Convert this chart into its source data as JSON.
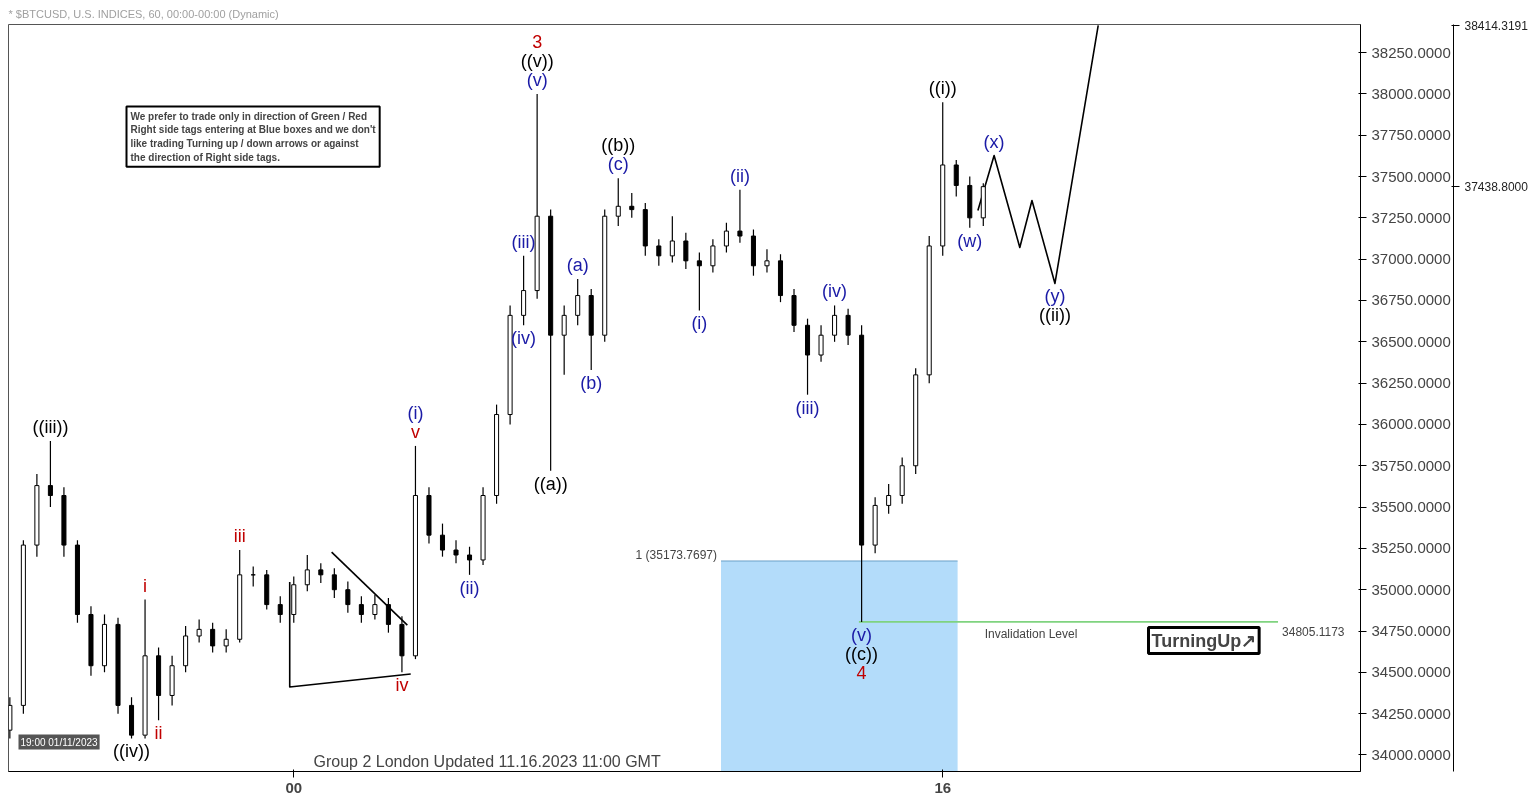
{
  "chart_data": {
    "type": "candlestick",
    "title": "* $BTCUSD, U.S. INDICES, 60, 00:00-00:00 (Dynamic)",
    "x": [
      "2023-11-13T03:00",
      "2023-11-13T04:00",
      "2023-11-13T05:00",
      "2023-11-13T06:00",
      "2023-11-13T07:00",
      "2023-11-13T08:00",
      "2023-11-13T09:00",
      "2023-11-13T10:00",
      "2023-11-13T11:00",
      "2023-11-13T12:00",
      "2023-11-13T13:00",
      "2023-11-13T14:00",
      "2023-11-13T15:00",
      "2023-11-13T16:00",
      "2023-11-13T17:00",
      "2023-11-13T18:00",
      "2023-11-13T19:00",
      "2023-11-13T20:00",
      "2023-11-13T21:00",
      "2023-11-13T22:00",
      "2023-11-13T23:00",
      "2023-11-14T00:00",
      "2023-11-14T01:00",
      "2023-11-14T02:00",
      "2023-11-14T03:00",
      "2023-11-14T04:00",
      "2023-11-14T05:00",
      "2023-11-14T06:00",
      "2023-11-14T07:00",
      "2023-11-14T08:00",
      "2023-11-14T09:00",
      "2023-11-14T10:00",
      "2023-11-14T11:00",
      "2023-11-14T12:00",
      "2023-11-14T13:00",
      "2023-11-14T14:00",
      "2023-11-14T15:00",
      "2023-11-14T16:00",
      "2023-11-14T17:00",
      "2023-11-14T18:00",
      "2023-11-14T19:00",
      "2023-11-14T20:00",
      "2023-11-14T21:00",
      "2023-11-14T22:00",
      "2023-11-14T23:00",
      "2023-11-15T00:00",
      "2023-11-15T01:00",
      "2023-11-15T02:00",
      "2023-11-15T03:00",
      "2023-11-15T04:00",
      "2023-11-15T05:00",
      "2023-11-15T06:00",
      "2023-11-15T07:00",
      "2023-11-15T08:00",
      "2023-11-15T09:00",
      "2023-11-15T10:00",
      "2023-11-15T11:00",
      "2023-11-15T12:00",
      "2023-11-15T13:00",
      "2023-11-15T14:00",
      "2023-11-15T15:00",
      "2023-11-15T16:00",
      "2023-11-15T17:00",
      "2023-11-15T18:00",
      "2023-11-15T19:00",
      "2023-11-15T20:00",
      "2023-11-15T21:00",
      "2023-11-15T22:00",
      "2023-11-15T23:00",
      "2023-11-16T00:00",
      "2023-11-16T01:00",
      "2023-11-16T02:00",
      "2023-11-16T03:00"
    ],
    "ohlc": [
      [
        34150,
        34350,
        34100,
        34300
      ],
      [
        34300,
        35300,
        34250,
        35270
      ],
      [
        35270,
        35700,
        35200,
        35630
      ],
      [
        35630,
        35900,
        35500,
        35570
      ],
      [
        35570,
        35620,
        35200,
        35270
      ],
      [
        35270,
        35300,
        34800,
        34850
      ],
      [
        34850,
        34900,
        34480,
        34540
      ],
      [
        34540,
        34850,
        34500,
        34790
      ],
      [
        34790,
        34830,
        34250,
        34300
      ],
      [
        34300,
        34350,
        34100,
        34120
      ],
      [
        34120,
        34940,
        34100,
        34600
      ],
      [
        34600,
        34650,
        34210,
        34360
      ],
      [
        34360,
        34600,
        34300,
        34540
      ],
      [
        34540,
        34780,
        34500,
        34720
      ],
      [
        34720,
        34820,
        34680,
        34760
      ],
      [
        34760,
        34800,
        34620,
        34660
      ],
      [
        34660,
        34760,
        34620,
        34700
      ],
      [
        34700,
        35240,
        34680,
        35090
      ],
      [
        35090,
        35140,
        35020,
        35090
      ],
      [
        35090,
        35120,
        34880,
        34910
      ],
      [
        34910,
        34960,
        34800,
        34850
      ],
      [
        34850,
        35080,
        34800,
        35030
      ],
      [
        35030,
        35210,
        34990,
        35120
      ],
      [
        35120,
        35160,
        35040,
        35090
      ],
      [
        35090,
        35130,
        34950,
        35000
      ],
      [
        35000,
        35050,
        34860,
        34910
      ],
      [
        34910,
        34960,
        34800,
        34850
      ],
      [
        34850,
        34970,
        34820,
        34910
      ],
      [
        34910,
        34950,
        34740,
        34790
      ],
      [
        34790,
        34840,
        34500,
        34600
      ],
      [
        34600,
        35870,
        34580,
        35570
      ],
      [
        35570,
        35620,
        35280,
        35330
      ],
      [
        35330,
        35400,
        35200,
        35240
      ],
      [
        35240,
        35300,
        35160,
        35210
      ],
      [
        35210,
        35260,
        35090,
        35180
      ],
      [
        35180,
        35620,
        35150,
        35570
      ],
      [
        35570,
        36120,
        35520,
        36060
      ],
      [
        36060,
        36720,
        36000,
        36660
      ],
      [
        36660,
        37020,
        36600,
        36810
      ],
      [
        36810,
        38000,
        36760,
        37260
      ],
      [
        37260,
        37300,
        35720,
        36540
      ],
      [
        36540,
        36720,
        36300,
        36660
      ],
      [
        36660,
        36880,
        36600,
        36780
      ],
      [
        36780,
        36820,
        36330,
        36540
      ],
      [
        36540,
        37300,
        36500,
        37260
      ],
      [
        37260,
        37490,
        37200,
        37320
      ],
      [
        37320,
        37400,
        37250,
        37300
      ],
      [
        37300,
        37340,
        37020,
        37080
      ],
      [
        37080,
        37120,
        36960,
        37020
      ],
      [
        37020,
        37260,
        36980,
        37110
      ],
      [
        37110,
        37160,
        36940,
        36990
      ],
      [
        36990,
        37040,
        36690,
        36960
      ],
      [
        36960,
        37120,
        36920,
        37080
      ],
      [
        37080,
        37220,
        37040,
        37170
      ],
      [
        37170,
        37420,
        37100,
        37140
      ],
      [
        37140,
        37180,
        36900,
        36960
      ],
      [
        36960,
        37060,
        36920,
        36990
      ],
      [
        36990,
        37030,
        36740,
        36780
      ],
      [
        36780,
        36820,
        36560,
        36600
      ],
      [
        36600,
        36640,
        36180,
        36420
      ],
      [
        36420,
        36600,
        36380,
        36540
      ],
      [
        36540,
        36720,
        36500,
        36660
      ],
      [
        36660,
        36700,
        36480,
        36540
      ],
      [
        36540,
        36600,
        34805.1173,
        35270
      ],
      [
        35270,
        35560,
        35220,
        35510
      ],
      [
        35510,
        35640,
        35460,
        35570
      ],
      [
        35570,
        35800,
        35520,
        35750
      ],
      [
        35750,
        36340,
        35700,
        36300
      ],
      [
        36300,
        37140,
        36250,
        37080
      ],
      [
        37080,
        37950,
        37020,
        37570
      ],
      [
        37570,
        37600,
        37380,
        37446
      ],
      [
        37446,
        37500,
        37190,
        37250
      ],
      [
        37250,
        37460,
        37200,
        37438.8
      ]
    ],
    "color": "#000000",
    "series": [
      {
        "type": "area",
        "x": [
          "2023-11-15T07:36",
          "2023-11-16T01:06"
        ],
        "values": [
          35173.7697,
          35173.7697
        ],
        "color": "#b3dcfa"
      },
      {
        "type": "line",
        "x": [
          "2023-11-15T17:48",
          "2023-11-17T00:48"
        ],
        "values": [
          34805.1173,
          34805.1173
        ],
        "color": "#7fd37f"
      },
      {
        "type": "line",
        "x": [
          "2023-11-13T23:42",
          "2023-11-13T23:42",
          "2023-11-14T08:39"
        ],
        "values": [
          35046,
          34411,
          34490
        ],
        "color": "#000000"
      },
      {
        "type": "line",
        "x": [
          "2023-11-14T02:48",
          "2023-11-14T08:24"
        ],
        "values": [
          35227,
          34786
        ],
        "color": "#000000"
      },
      {
        "type": "line",
        "x": [
          "2023-11-16T02:36",
          "2023-11-16T03:48",
          "2023-11-16T05:42",
          "2023-11-16T06:36",
          "2023-11-16T08:18",
          "2023-11-16T11:30"
        ],
        "values": [
          37295,
          37627,
          37071,
          37355,
          36853,
          38414
        ],
        "color": "#000000"
      }
    ],
    "xlim": [
      "2023-11-13T02:54",
      "2023-11-17T06:54"
    ],
    "ylim": [
      33900,
      38420
    ],
    "xticks": [
      {
        "value": "2023-11-14T00:00",
        "label": "00"
      },
      {
        "value": "2023-11-16T00:00",
        "label": "16"
      }
    ],
    "yticks": [
      {
        "value": 34000,
        "label": "34000.0000"
      },
      {
        "value": 34250,
        "label": "34250.0000"
      },
      {
        "value": 34500,
        "label": "34500.0000"
      },
      {
        "value": 34750,
        "label": "34750.0000"
      },
      {
        "value": 35000,
        "label": "35000.0000"
      },
      {
        "value": 35250,
        "label": "35250.0000"
      },
      {
        "value": 35500,
        "label": "35500.0000"
      },
      {
        "value": 35750,
        "label": "35750.0000"
      },
      {
        "value": 36000,
        "label": "36000.0000"
      },
      {
        "value": 36250,
        "label": "36250.0000"
      },
      {
        "value": 36500,
        "label": "36500.0000"
      },
      {
        "value": 36750,
        "label": "36750.0000"
      },
      {
        "value": 37000,
        "label": "37000.0000"
      },
      {
        "value": 37250,
        "label": "37250.0000"
      },
      {
        "value": 37500,
        "label": "37500.0000"
      },
      {
        "value": 37750,
        "label": "37750.0000"
      },
      {
        "value": 38000,
        "label": "38000.0000"
      },
      {
        "value": 38250,
        "label": "38250.0000"
      }
    ],
    "y2lim": [
      33900,
      38420
    ],
    "y2ticks": [
      {
        "value": 37438.8,
        "label": "37438.8000"
      },
      {
        "value": 38414.3191,
        "label": "38414.3191"
      }
    ],
    "grid": false,
    "annotations": [
      "We prefer to trade only in direction of Green / Red\nRight side tags entering at Blue boxes and we don't\nlike trading Turning up / down arrows or against\nthe direction of Right side tags.",
      "Group 2 London Updated 11.16.2023 11:00 GMT",
      "19:00 01/11/2023",
      "TurningUp↗",
      "Invalidation Level",
      {
        "text": "1 (35173.7697)",
        "x": "2023-11-15T07:36",
        "y": 35173.7697
      },
      {
        "text": "34805.1173",
        "x": "2023-11-17T00:48",
        "y": 34805.1173
      },
      {
        "text": "((iii))",
        "x": "2023-11-13T06:00",
        "y": 35900
      },
      {
        "text": "((iv))",
        "x": "2023-11-13T12:00",
        "y": 34100
      },
      {
        "text": "i",
        "x": "2023-11-13T13:00",
        "y": 34940
      },
      {
        "text": "ii",
        "x": "2023-11-13T14:00",
        "y": 34210
      },
      {
        "text": "iii",
        "x": "2023-11-13T20:00",
        "y": 35240
      },
      {
        "text": "iv",
        "x": "2023-11-14T08:00",
        "y": 34500
      },
      {
        "text": "v",
        "x": "2023-11-14T09:00",
        "y": 35870
      },
      {
        "text": "(i)",
        "x": "2023-11-14T09:00",
        "y": 35870
      },
      {
        "text": "(ii)",
        "x": "2023-11-14T13:00",
        "y": 35090
      },
      {
        "text": "(iii)",
        "x": "2023-11-14T17:00",
        "y": 37020
      },
      {
        "text": "(iv)",
        "x": "2023-11-14T17:00",
        "y": 36600
      },
      {
        "text": "(v)",
        "x": "2023-11-14T18:00",
        "y": 38000
      },
      {
        "text": "((v))",
        "x": "2023-11-14T18:00",
        "y": 38000
      },
      {
        "text": "3",
        "x": "2023-11-14T18:00",
        "y": 38000
      },
      {
        "text": "((a))",
        "x": "2023-11-14T19:00",
        "y": 35720
      },
      {
        "text": "(a)",
        "x": "2023-11-14T21:00",
        "y": 36880
      },
      {
        "text": "(b)",
        "x": "2023-11-14T22:00",
        "y": 36330
      },
      {
        "text": "(c)",
        "x": "2023-11-15T00:00",
        "y": 37490
      },
      {
        "text": "((b))",
        "x": "2023-11-15T00:00",
        "y": 37490
      },
      {
        "text": "(i)",
        "x": "2023-11-15T06:00",
        "y": 36690
      },
      {
        "text": "(ii)",
        "x": "2023-11-15T09:00",
        "y": 37420
      },
      {
        "text": "(iii)",
        "x": "2023-11-15T14:00",
        "y": 36180
      },
      {
        "text": "(iv)",
        "x": "2023-11-15T16:00",
        "y": 36720
      },
      {
        "text": "(v)",
        "x": "2023-11-15T18:00",
        "y": 34805.1173
      },
      {
        "text": "((c))",
        "x": "2023-11-15T18:00",
        "y": 34805.1173
      },
      {
        "text": "4",
        "x": "2023-11-15T18:00",
        "y": 34805.1173
      },
      {
        "text": "((i))",
        "x": "2023-11-16T00:00",
        "y": 37950
      },
      {
        "text": "(w)",
        "x": "2023-11-16T02:00",
        "y": 37190
      },
      {
        "text": "(x)",
        "x": "2023-11-16T03:48",
        "y": 37627
      },
      {
        "text": "(y)",
        "x": "2023-11-16T08:18",
        "y": 36853
      },
      {
        "text": "((ii))",
        "x": "2023-11-16T08:18",
        "y": 36853
      }
    ]
  }
}
